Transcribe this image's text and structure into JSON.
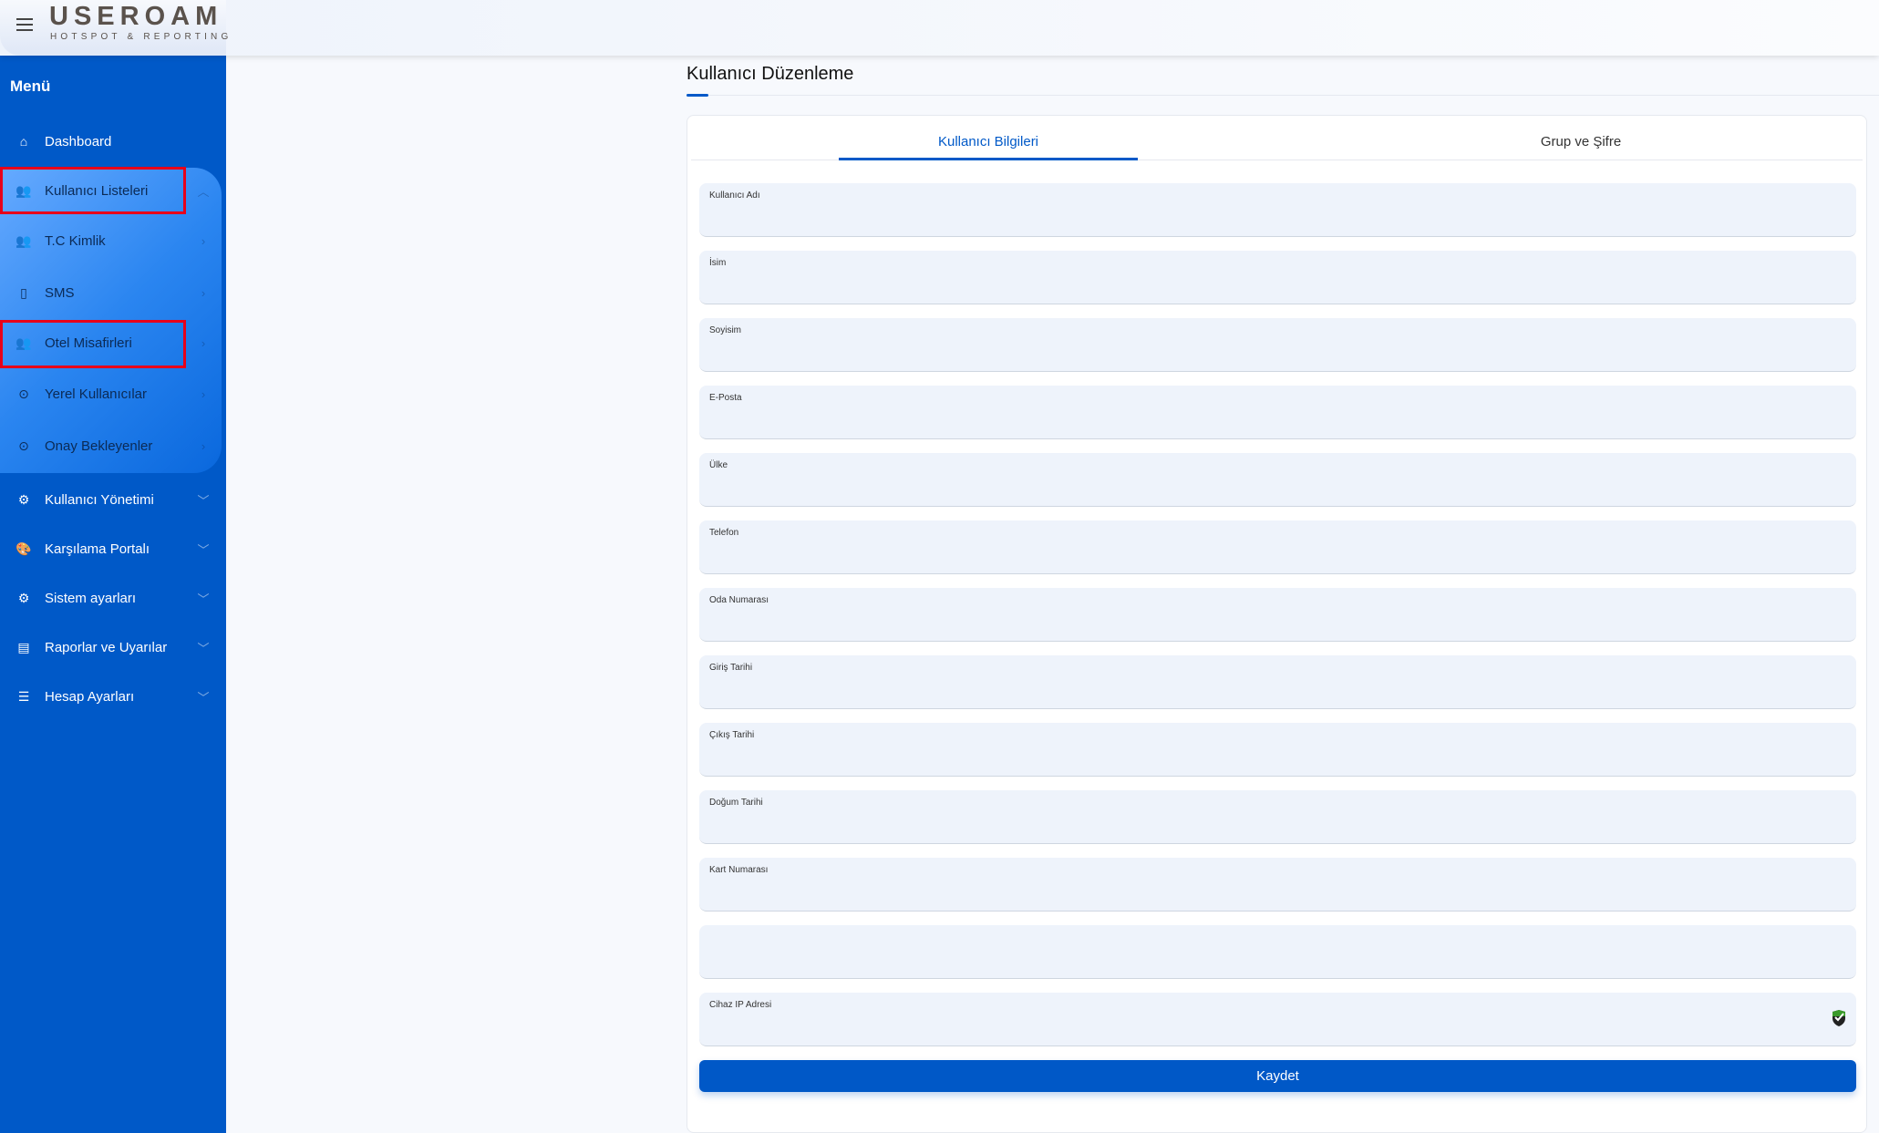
{
  "header": {
    "logo_main": "USEROAM",
    "logo_sub": "HOTSPOT & REPORTING"
  },
  "sidebar": {
    "title": "Menü",
    "items": [
      {
        "label": "Dashboard",
        "icon": "home-icon"
      },
      {
        "label": "Kullanıcı Listeleri",
        "icon": "users-icon",
        "expanded": true
      },
      {
        "label": "Kullanıcı Yönetimi",
        "icon": "gear-icon"
      },
      {
        "label": "Karşılama Portalı",
        "icon": "palette-icon"
      },
      {
        "label": "Sistem ayarları",
        "icon": "gear-icon"
      },
      {
        "label": "Raporlar ve Uyarılar",
        "icon": "report-icon"
      },
      {
        "label": "Hesap Ayarları",
        "icon": "network-icon"
      }
    ],
    "subitems": [
      {
        "label": "T.C Kimlik",
        "icon": "users-icon"
      },
      {
        "label": "SMS",
        "icon": "phone-icon"
      },
      {
        "label": "Otel Misafirleri",
        "icon": "users-icon"
      },
      {
        "label": "Yerel Kullanıcılar",
        "icon": "dot-circle-icon"
      },
      {
        "label": "Onay Bekleyenler",
        "icon": "dot-circle-icon"
      }
    ]
  },
  "main": {
    "title": "Kullanıcı Düzenleme",
    "tabs": [
      {
        "label": "Kullanıcı Bilgileri",
        "active": true
      },
      {
        "label": "Grup ve Şifre",
        "active": false
      }
    ],
    "fields": [
      {
        "label": "Kullanıcı Adı",
        "value": ""
      },
      {
        "label": "İsim",
        "value": ""
      },
      {
        "label": "Soyisim",
        "value": ""
      },
      {
        "label": "E-Posta",
        "value": ""
      },
      {
        "label": "Ülke",
        "value": ""
      },
      {
        "label": "Telefon",
        "value": ""
      },
      {
        "label": "Oda Numarası",
        "value": ""
      },
      {
        "label": "Giriş Tarihi",
        "value": ""
      },
      {
        "label": "Çıkış Tarihi",
        "value": ""
      },
      {
        "label": "Doğum Tarihi",
        "value": ""
      },
      {
        "label": "Kart Numarası",
        "value": ""
      },
      {
        "label": "",
        "value": ""
      },
      {
        "label": "Cihaz IP Adresi",
        "value": ""
      }
    ],
    "save_label": "Kaydet"
  },
  "colors": {
    "primary": "#0059c8",
    "highlight_border": "#e8001a",
    "field_bg": "#eef3fb"
  }
}
